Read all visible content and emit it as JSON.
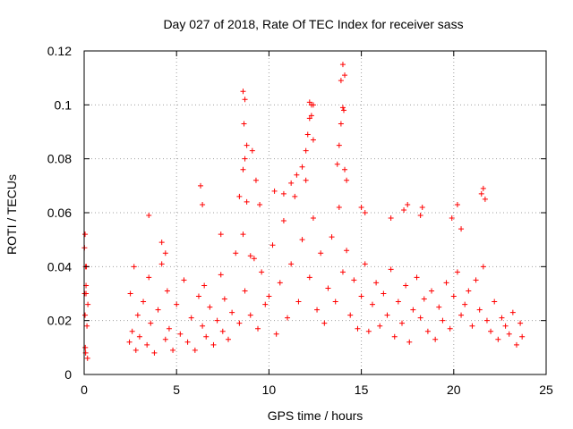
{
  "chart_data": {
    "type": "scatter",
    "title": "Day 027 of 2018, Rate Of TEC Index for receiver sass",
    "xlabel": "GPS time / hours",
    "ylabel": "ROTI / TECUs",
    "xlim": [
      0,
      25
    ],
    "ylim": [
      0,
      0.12
    ],
    "grid": true,
    "marker": "plus",
    "color": "#ff0000",
    "x_ticks": [
      {
        "value": 0,
        "label": "0"
      },
      {
        "value": 5,
        "label": "5"
      },
      {
        "value": 10,
        "label": "10"
      },
      {
        "value": 15,
        "label": "15"
      },
      {
        "value": 20,
        "label": "20"
      },
      {
        "value": 25,
        "label": "25"
      }
    ],
    "y_ticks": [
      {
        "value": 0,
        "label": "0"
      },
      {
        "value": 0.02,
        "label": "0.02"
      },
      {
        "value": 0.04,
        "label": "0.04"
      },
      {
        "value": 0.06,
        "label": "0.06"
      },
      {
        "value": 0.08,
        "label": "0.08"
      },
      {
        "value": 0.1,
        "label": "0.1"
      },
      {
        "value": 0.12,
        "label": "0.12"
      }
    ],
    "series": [
      {
        "name": "ROTI",
        "x": [
          0.02,
          0.03,
          0.05,
          0.06,
          0.08,
          0.1,
          0.12,
          0.15,
          0.18,
          0.2,
          2.45,
          2.5,
          2.6,
          2.7,
          2.8,
          2.9,
          3.0,
          3.2,
          3.4,
          3.5,
          3.6,
          3.8,
          4.0,
          4.2,
          4.4,
          4.5,
          4.6,
          4.8,
          5.0,
          5.2,
          5.4,
          5.6,
          5.8,
          6.0,
          6.2,
          6.4,
          6.5,
          6.6,
          6.8,
          7.0,
          7.2,
          7.4,
          7.5,
          7.6,
          7.8,
          8.0,
          8.2,
          8.4,
          8.6,
          8.7,
          8.8,
          9.0,
          9.2,
          9.4,
          9.6,
          9.8,
          10.0,
          10.2,
          10.4,
          10.6,
          10.8,
          11.0,
          11.2,
          11.4,
          11.6,
          11.8,
          12.0,
          12.2,
          12.4,
          12.6,
          12.8,
          13.0,
          13.2,
          13.4,
          13.6,
          13.8,
          14.0,
          14.2,
          14.4,
          14.6,
          14.8,
          15.0,
          15.2,
          15.4,
          15.6,
          15.8,
          16.0,
          16.2,
          16.4,
          16.6,
          16.8,
          17.0,
          17.2,
          17.4,
          17.6,
          17.8,
          18.0,
          18.2,
          18.4,
          18.6,
          18.8,
          19.0,
          19.2,
          19.4,
          19.6,
          19.8,
          20.0,
          20.2,
          20.4,
          20.6,
          20.8,
          21.0,
          21.2,
          21.4,
          21.6,
          21.8,
          22.0,
          22.2,
          22.4,
          22.6,
          22.8,
          23.0,
          23.2,
          23.4,
          23.6,
          23.7,
          3.5,
          4.2,
          4.4,
          6.3,
          6.4,
          7.4,
          8.4,
          8.6,
          8.7,
          8.8,
          9.1,
          9.3,
          9.5,
          10.3,
          10.8,
          11.2,
          11.5,
          11.8,
          12.0,
          12.1,
          12.2,
          12.3,
          12.4,
          13.7,
          13.8,
          13.9,
          14.0,
          14.1,
          14.2,
          15.0,
          15.2,
          16.6,
          17.3,
          17.5,
          18.2,
          18.3,
          19.9,
          20.2,
          20.4,
          21.5,
          21.6,
          21.7,
          0.05,
          0.08,
          0.1,
          8.6,
          8.7,
          12.2,
          12.4,
          13.9,
          14.0,
          14.1,
          14.05,
          8.65,
          12.3,
          9.0
        ],
        "y": [
          0.047,
          0.03,
          0.022,
          0.01,
          0.008,
          0.033,
          0.04,
          0.018,
          0.006,
          0.026,
          0.012,
          0.03,
          0.016,
          0.04,
          0.009,
          0.022,
          0.014,
          0.027,
          0.011,
          0.036,
          0.019,
          0.008,
          0.024,
          0.041,
          0.013,
          0.031,
          0.017,
          0.009,
          0.026,
          0.015,
          0.035,
          0.012,
          0.021,
          0.009,
          0.029,
          0.018,
          0.033,
          0.014,
          0.025,
          0.011,
          0.02,
          0.037,
          0.016,
          0.028,
          0.013,
          0.023,
          0.045,
          0.019,
          0.052,
          0.031,
          0.064,
          0.022,
          0.043,
          0.017,
          0.038,
          0.026,
          0.029,
          0.048,
          0.015,
          0.034,
          0.057,
          0.021,
          0.041,
          0.066,
          0.027,
          0.05,
          0.072,
          0.036,
          0.058,
          0.024,
          0.045,
          0.019,
          0.032,
          0.051,
          0.027,
          0.062,
          0.038,
          0.046,
          0.022,
          0.035,
          0.017,
          0.029,
          0.041,
          0.016,
          0.026,
          0.034,
          0.018,
          0.03,
          0.022,
          0.039,
          0.014,
          0.027,
          0.019,
          0.033,
          0.012,
          0.024,
          0.036,
          0.021,
          0.028,
          0.016,
          0.031,
          0.013,
          0.025,
          0.02,
          0.034,
          0.017,
          0.029,
          0.038,
          0.022,
          0.026,
          0.031,
          0.018,
          0.035,
          0.024,
          0.04,
          0.02,
          0.016,
          0.027,
          0.013,
          0.021,
          0.018,
          0.015,
          0.023,
          0.011,
          0.019,
          0.014,
          0.059,
          0.049,
          0.045,
          0.07,
          0.063,
          0.052,
          0.066,
          0.076,
          0.08,
          0.085,
          0.083,
          0.072,
          0.063,
          0.068,
          0.067,
          0.071,
          0.074,
          0.077,
          0.083,
          0.089,
          0.095,
          0.1,
          0.087,
          0.078,
          0.085,
          0.093,
          0.099,
          0.076,
          0.072,
          0.062,
          0.06,
          0.058,
          0.061,
          0.063,
          0.059,
          0.062,
          0.058,
          0.063,
          0.054,
          0.067,
          0.069,
          0.065,
          0.052,
          0.04,
          0.03,
          0.105,
          0.102,
          0.101,
          0.1,
          0.109,
          0.115,
          0.111,
          0.098,
          0.093,
          0.096,
          0.044
        ]
      }
    ]
  }
}
